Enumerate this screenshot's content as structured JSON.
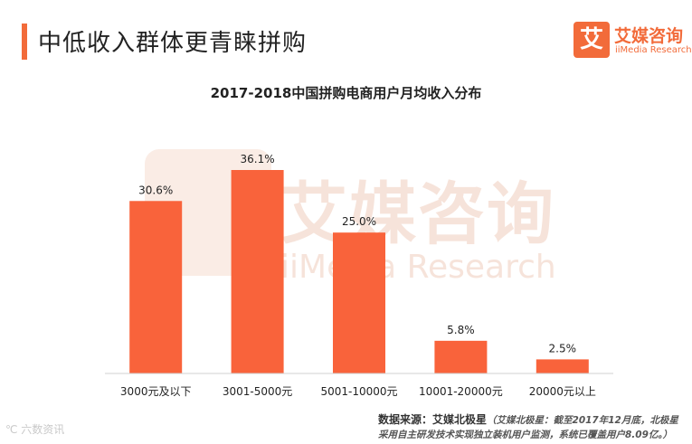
{
  "header": {
    "title": "中低收入群体更青睐拼购",
    "accent_color": "#f26b3a"
  },
  "logo": {
    "mark": "艾",
    "cn": "艾媒咨询",
    "en": "iiMedia Research",
    "color": "#f26b3a"
  },
  "watermark": {
    "mark": "艾",
    "cn": "艾媒咨询",
    "en": "iiMedia Research"
  },
  "chart_data": {
    "type": "bar",
    "title": "2017-2018中国拼购电商用户月均收入分布",
    "categories": [
      "3000元及以下",
      "3001-5000元",
      "5001-10000元",
      "10001-20000元",
      "20000元以上"
    ],
    "values": [
      30.6,
      36.1,
      25.0,
      5.8,
      2.5
    ],
    "value_labels": [
      "30.6%",
      "36.1%",
      "25.0%",
      "5.8%",
      "2.5%"
    ],
    "unit": "%",
    "ylim": [
      0,
      40
    ],
    "bar_color": "#f9633b",
    "grid": false,
    "legend": "none"
  },
  "source": {
    "label": "数据来源：艾媒北极星",
    "note": "（艾媒北极星：截至2017年12月底，北极星采用自主研发技术实现独立装机用户监测，系统已覆盖用户8.09亿。）"
  },
  "corner_watermark": "℃ 六数资讯"
}
